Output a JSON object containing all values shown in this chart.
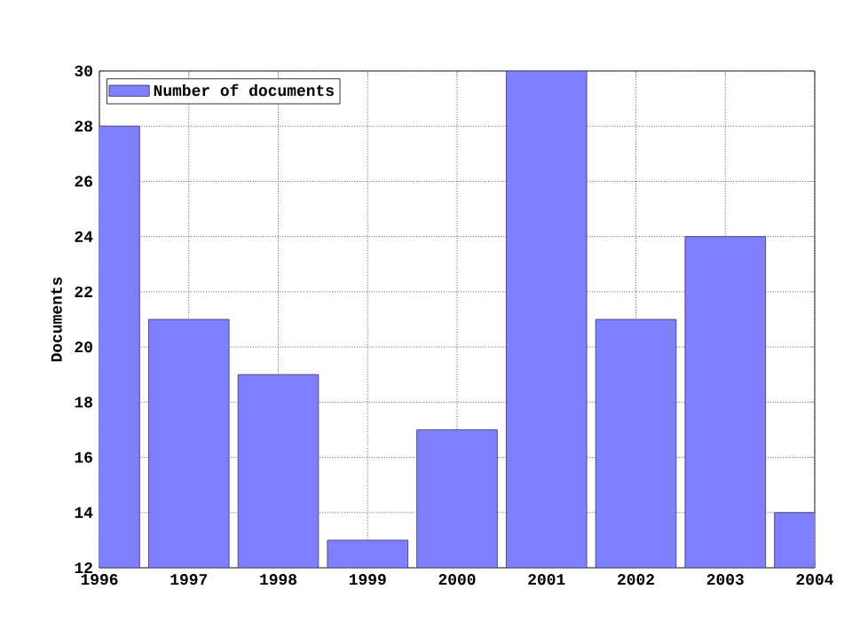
{
  "chart_data": {
    "type": "bar",
    "ylabel": "Documents",
    "x": [
      1996,
      1997,
      1998,
      1999,
      2000,
      2001,
      2002,
      2003,
      2004
    ],
    "series": [
      {
        "name": "Number of documents",
        "color": "#8080ff",
        "values": [
          28,
          21,
          19,
          13,
          17,
          30,
          21,
          24,
          14
        ]
      }
    ],
    "xlim": [
      1996,
      2004
    ],
    "xticks": [
      1996,
      1997,
      1998,
      1999,
      2000,
      2001,
      2002,
      2003,
      2004
    ],
    "ylim": [
      12,
      30
    ],
    "yticks": [
      12,
      14,
      16,
      18,
      20,
      22,
      24,
      26,
      28,
      30
    ],
    "grid": true,
    "legend": "top left"
  }
}
